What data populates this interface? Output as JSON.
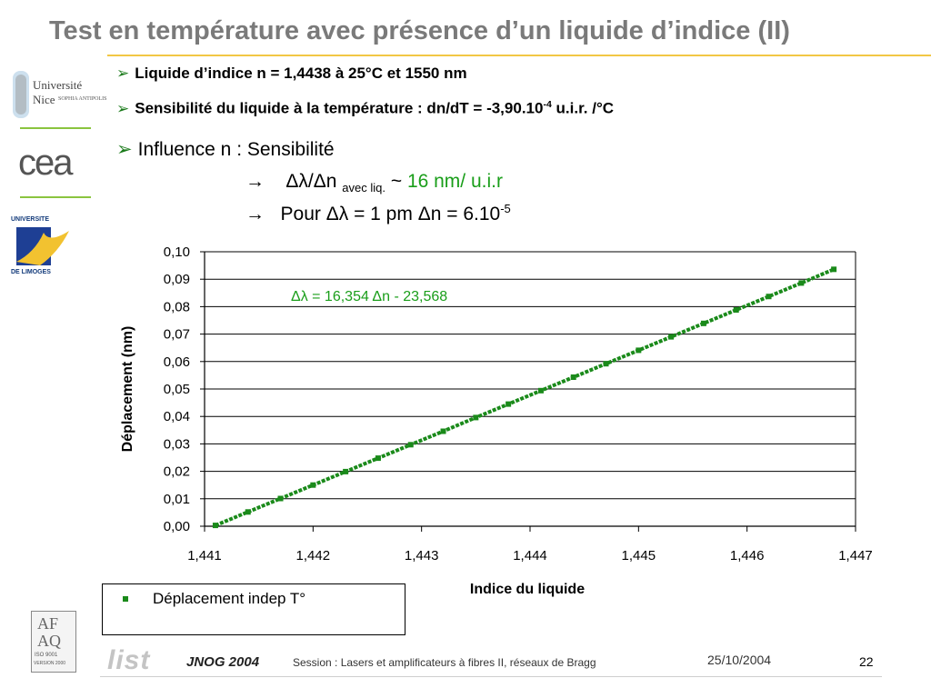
{
  "slide": {
    "title": "Test en température avec présence d’un liquide d’indice (II)",
    "bullet1": "Liquide d’indice n = 1,4438 à 25°C et 1550 nm",
    "bullet2_pre": "Sensibilité du liquide à la température : dn/dT = -3,90.10",
    "bullet2_sup": "-4",
    "bullet2_post": " u.i.r. /°C",
    "bullet3": "Influence n : Sensibilité",
    "line4_arrow": "→",
    "line4_pre": "Δλ/Δn ",
    "line4_sub": "avec liq.",
    "line4_tilde": " ~ ",
    "line4_value": "16 nm/ u.i.r",
    "line5_arrow": "→",
    "line5_pre": "Pour  Δλ = 1 pm Δn = 6.10",
    "line5_sup": "-5"
  },
  "logos": {
    "unice_1": "Université",
    "unice_2": "Nice",
    "unice_3": "SOPHIA ANTIPOLIS",
    "cea": "cea",
    "limoges_top": "UNIVERSITE",
    "limoges_bottom": "DE LIMOGES",
    "afaq_1": "AF",
    "afaq_2": "AQ",
    "afaq_iso": "ISO 9001",
    "afaq_version": "VERSION 2000",
    "list": "list"
  },
  "footer": {
    "conf": "JNOG 2004",
    "session": "Session : Lasers et amplificateurs à fibres II, réseaux de Bragg",
    "date": "25/10/2004",
    "page": "22"
  },
  "colors": {
    "series": "#1a8a1a",
    "title": "#7a7a7a",
    "accent_rule": "#f2c744",
    "equation": "#1a9e1a"
  },
  "chart_data": {
    "type": "scatter",
    "title": "",
    "xlabel": "Indice du liquide",
    "ylabel": "Déplacement (nm)",
    "xlim": [
      1.441,
      1.447
    ],
    "ylim": [
      0.0,
      0.1
    ],
    "x_ticks": [
      1.441,
      1.442,
      1.443,
      1.444,
      1.445,
      1.446,
      1.447
    ],
    "y_ticks": [
      0.0,
      0.01,
      0.02,
      0.03,
      0.04,
      0.05,
      0.06,
      0.07,
      0.08,
      0.09,
      0.1
    ],
    "x_tick_labels": [
      "1,441",
      "1,442",
      "1,443",
      "1,444",
      "1,445",
      "1,446",
      "1,447"
    ],
    "y_tick_labels": [
      "0,00",
      "0,01",
      "0,02",
      "0,03",
      "0,04",
      "0,05",
      "0,06",
      "0,07",
      "0,08",
      "0,09",
      "0,10"
    ],
    "grid": "horizontal",
    "annotation": "Δλ = 16,354 Δn - 23,568",
    "series": [
      {
        "name": "Déplacement indep T°",
        "x": [
          1.4411,
          1.4414,
          1.4417,
          1.442,
          1.4423,
          1.4426,
          1.4429,
          1.4432,
          1.4435,
          1.4438,
          1.4441,
          1.4444,
          1.4447,
          1.445,
          1.4453,
          1.4456,
          1.4459,
          1.4462,
          1.4465,
          1.4468
        ],
        "y": [
          0.0003,
          0.0052,
          0.0101,
          0.015,
          0.0199,
          0.0248,
          0.0297,
          0.0346,
          0.0396,
          0.0445,
          0.0494,
          0.0543,
          0.0592,
          0.0641,
          0.069,
          0.0739,
          0.0788,
          0.0837,
          0.0886,
          0.0936
        ]
      }
    ]
  }
}
